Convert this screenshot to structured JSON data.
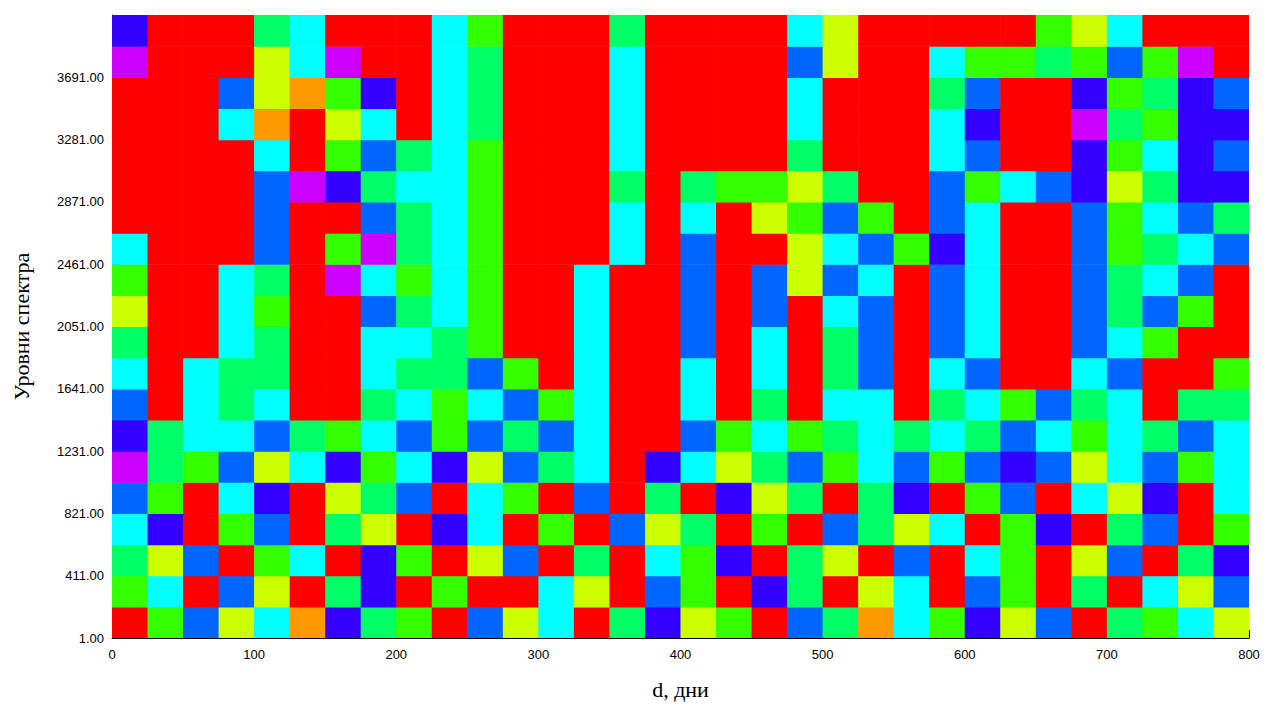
{
  "chart_data": {
    "type": "heatmap",
    "x_label": "d, дни",
    "y_label": "Уровни спектра",
    "xlim": [
      0,
      800
    ],
    "xticks": [
      0,
      100,
      200,
      300,
      400,
      500,
      600,
      700,
      800
    ],
    "ylim": [
      1,
      4101
    ],
    "yticks": [
      {
        "value": 1,
        "label": "1.00"
      },
      {
        "value": 411,
        "label": "411.00"
      },
      {
        "value": 821,
        "label": "821.00"
      },
      {
        "value": 1231,
        "label": "1231.00"
      },
      {
        "value": 1641,
        "label": "1641.00"
      },
      {
        "value": 2051,
        "label": "2051.00"
      },
      {
        "value": 2461,
        "label": "2461.00"
      },
      {
        "value": 2871,
        "label": "2871.00"
      },
      {
        "value": 3281,
        "label": "3281.00"
      },
      {
        "value": 3691,
        "label": "3691.00"
      }
    ],
    "grid": false,
    "zlim": [
      0,
      10
    ],
    "x_edges": [
      0,
      25,
      50,
      75,
      100,
      125,
      150,
      175,
      200,
      225,
      250,
      275,
      300,
      325,
      350,
      375,
      400,
      425,
      450,
      475,
      500,
      525,
      550,
      575,
      600,
      625,
      650,
      675,
      700,
      725,
      750,
      775,
      800
    ],
    "y_edges": [
      1,
      206,
      411,
      616,
      821,
      1026,
      1231,
      1436,
      1641,
      1846,
      2051,
      2256,
      2461,
      2666,
      2871,
      3076,
      3281,
      3486,
      3691,
      3896,
      4101
    ],
    "values": [
      [
        0,
        3,
        6,
        2,
        5,
        1,
        7,
        4,
        3,
        0,
        6,
        2,
        5,
        0,
        4,
        7,
        2,
        3,
        0,
        6,
        4,
        1,
        5,
        3,
        7,
        2,
        6,
        0,
        4,
        3,
        5,
        2
      ],
      [
        3,
        5,
        0,
        6,
        2,
        0,
        4,
        7,
        0,
        3,
        0,
        0,
        5,
        2,
        0,
        6,
        3,
        0,
        7,
        4,
        0,
        2,
        5,
        0,
        6,
        3,
        0,
        4,
        0,
        5,
        2,
        6
      ],
      [
        4,
        2,
        6,
        0,
        3,
        5,
        0,
        7,
        3,
        0,
        2,
        6,
        0,
        4,
        0,
        5,
        3,
        7,
        0,
        4,
        2,
        0,
        6,
        0,
        5,
        3,
        0,
        2,
        6,
        0,
        4,
        7
      ],
      [
        5,
        7,
        0,
        3,
        6,
        0,
        4,
        2,
        0,
        7,
        5,
        0,
        3,
        0,
        6,
        2,
        4,
        0,
        3,
        0,
        6,
        4,
        2,
        5,
        0,
        3,
        7,
        0,
        4,
        6,
        0,
        3
      ],
      [
        6,
        3,
        0,
        5,
        7,
        0,
        2,
        4,
        6,
        0,
        5,
        3,
        0,
        6,
        0,
        4,
        0,
        7,
        2,
        4,
        0,
        4,
        7,
        0,
        3,
        6,
        0,
        5,
        2,
        7,
        0,
        5
      ],
      [
        8,
        4,
        3,
        6,
        2,
        5,
        7,
        3,
        5,
        7,
        2,
        6,
        4,
        5,
        0,
        7,
        5,
        2,
        4,
        6,
        3,
        5,
        6,
        3,
        6,
        7,
        6,
        2,
        5,
        6,
        3,
        5
      ],
      [
        7,
        4,
        5,
        5,
        6,
        4,
        3,
        5,
        6,
        3,
        6,
        4,
        6,
        5,
        0,
        0,
        6,
        3,
        5,
        3,
        4,
        5,
        4,
        5,
        4,
        6,
        5,
        3,
        5,
        4,
        6,
        5
      ],
      [
        6,
        0,
        5,
        4,
        5,
        0,
        0,
        4,
        5,
        3,
        5,
        6,
        3,
        5,
        0,
        0,
        5,
        0,
        4,
        0,
        5,
        5,
        0,
        4,
        5,
        3,
        6,
        4,
        5,
        0,
        4,
        4
      ],
      [
        5,
        0,
        5,
        4,
        4,
        0,
        0,
        5,
        4,
        4,
        6,
        3,
        0,
        5,
        0,
        0,
        5,
        0,
        5,
        0,
        4,
        6,
        0,
        5,
        6,
        0,
        0,
        5,
        6,
        0,
        0,
        3
      ],
      [
        4,
        0,
        0,
        5,
        4,
        0,
        0,
        5,
        5,
        4,
        3,
        0,
        0,
        5,
        0,
        0,
        6,
        0,
        5,
        0,
        4,
        6,
        0,
        6,
        5,
        0,
        0,
        6,
        5,
        3,
        0,
        0
      ],
      [
        2,
        0,
        0,
        5,
        3,
        0,
        0,
        6,
        4,
        5,
        3,
        0,
        0,
        5,
        0,
        0,
        6,
        0,
        6,
        0,
        5,
        6,
        0,
        6,
        5,
        0,
        0,
        6,
        4,
        6,
        3,
        0
      ],
      [
        3,
        0,
        0,
        5,
        4,
        0,
        8,
        5,
        3,
        5,
        3,
        0,
        0,
        5,
        0,
        0,
        6,
        0,
        6,
        2,
        6,
        5,
        0,
        6,
        5,
        0,
        0,
        6,
        4,
        5,
        6,
        0
      ],
      [
        5,
        0,
        0,
        0,
        6,
        0,
        3,
        8,
        4,
        5,
        3,
        0,
        0,
        0,
        5,
        0,
        6,
        0,
        0,
        2,
        5,
        6,
        3,
        7,
        5,
        0,
        0,
        6,
        3,
        4,
        5,
        6
      ],
      [
        0,
        0,
        0,
        0,
        6,
        0,
        0,
        6,
        4,
        5,
        3,
        0,
        0,
        0,
        5,
        0,
        5,
        0,
        2,
        3,
        6,
        3,
        0,
        6,
        5,
        0,
        0,
        6,
        3,
        5,
        6,
        4
      ],
      [
        0,
        0,
        0,
        0,
        6,
        8,
        7,
        4,
        5,
        5,
        3,
        0,
        0,
        0,
        4,
        0,
        4,
        3,
        3,
        2,
        4,
        0,
        0,
        6,
        3,
        5,
        6,
        7,
        2,
        4,
        7,
        7
      ],
      [
        0,
        0,
        0,
        0,
        5,
        0,
        3,
        6,
        4,
        5,
        3,
        0,
        0,
        0,
        5,
        0,
        0,
        0,
        0,
        4,
        0,
        0,
        0,
        5,
        6,
        0,
        0,
        7,
        3,
        5,
        7,
        6
      ],
      [
        0,
        0,
        0,
        5,
        1,
        0,
        2,
        5,
        0,
        5,
        4,
        0,
        0,
        0,
        5,
        0,
        0,
        0,
        0,
        5,
        0,
        0,
        0,
        5,
        7,
        0,
        0,
        8,
        4,
        3,
        7,
        7
      ],
      [
        0,
        0,
        0,
        6,
        2,
        1,
        3,
        7,
        0,
        5,
        4,
        0,
        0,
        0,
        5,
        0,
        0,
        0,
        0,
        5,
        0,
        0,
        0,
        4,
        6,
        0,
        0,
        7,
        3,
        4,
        7,
        6
      ],
      [
        8,
        0,
        0,
        0,
        2,
        5,
        8,
        0,
        0,
        5,
        4,
        0,
        0,
        0,
        5,
        0,
        0,
        0,
        0,
        6,
        2,
        0,
        0,
        5,
        3,
        3,
        4,
        3,
        6,
        3,
        8,
        0
      ],
      [
        7,
        0,
        0,
        0,
        4,
        5,
        0,
        0,
        0,
        5,
        3,
        0,
        0,
        0,
        4,
        0,
        0,
        0,
        0,
        5,
        2,
        0,
        0,
        0,
        0,
        0,
        3,
        2,
        5,
        0,
        0,
        0
      ]
    ]
  }
}
